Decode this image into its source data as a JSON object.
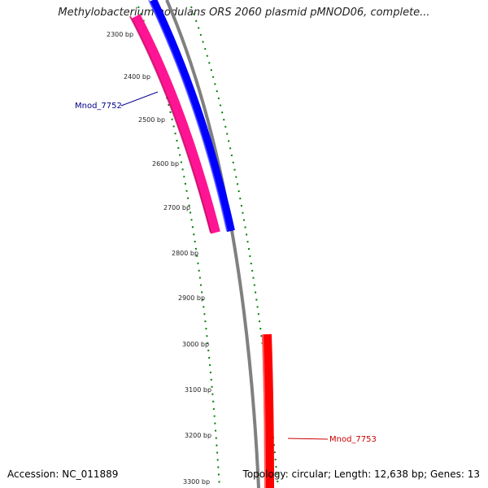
{
  "header": {
    "title": "Methylobacterium nodulans ORS 2060 plasmid pMNOD06, complete..."
  },
  "footer": {
    "accession": "Accession: NC_011889",
    "summary": "Topology: circular; Length: 12,638 bp; Genes: 13"
  },
  "ticks": [
    "2300 bp",
    "2400 bp",
    "2500 bp",
    "2600 bp",
    "2700 bp",
    "2800 bp",
    "2900 bp",
    "3000 bp",
    "3100 bp",
    "3200 bp",
    "3300 bp"
  ],
  "genes": [
    {
      "name": "Mnod_7752",
      "color": "#00008b"
    },
    {
      "name": "Mnod_7753",
      "color": "#cc0000"
    }
  ],
  "colors": {
    "forward_cds": "#0000ff",
    "orf_track": "#ff1493",
    "reverse_cds": "#ff0000",
    "backbone": "#808080",
    "gc_skew": "#008000"
  }
}
